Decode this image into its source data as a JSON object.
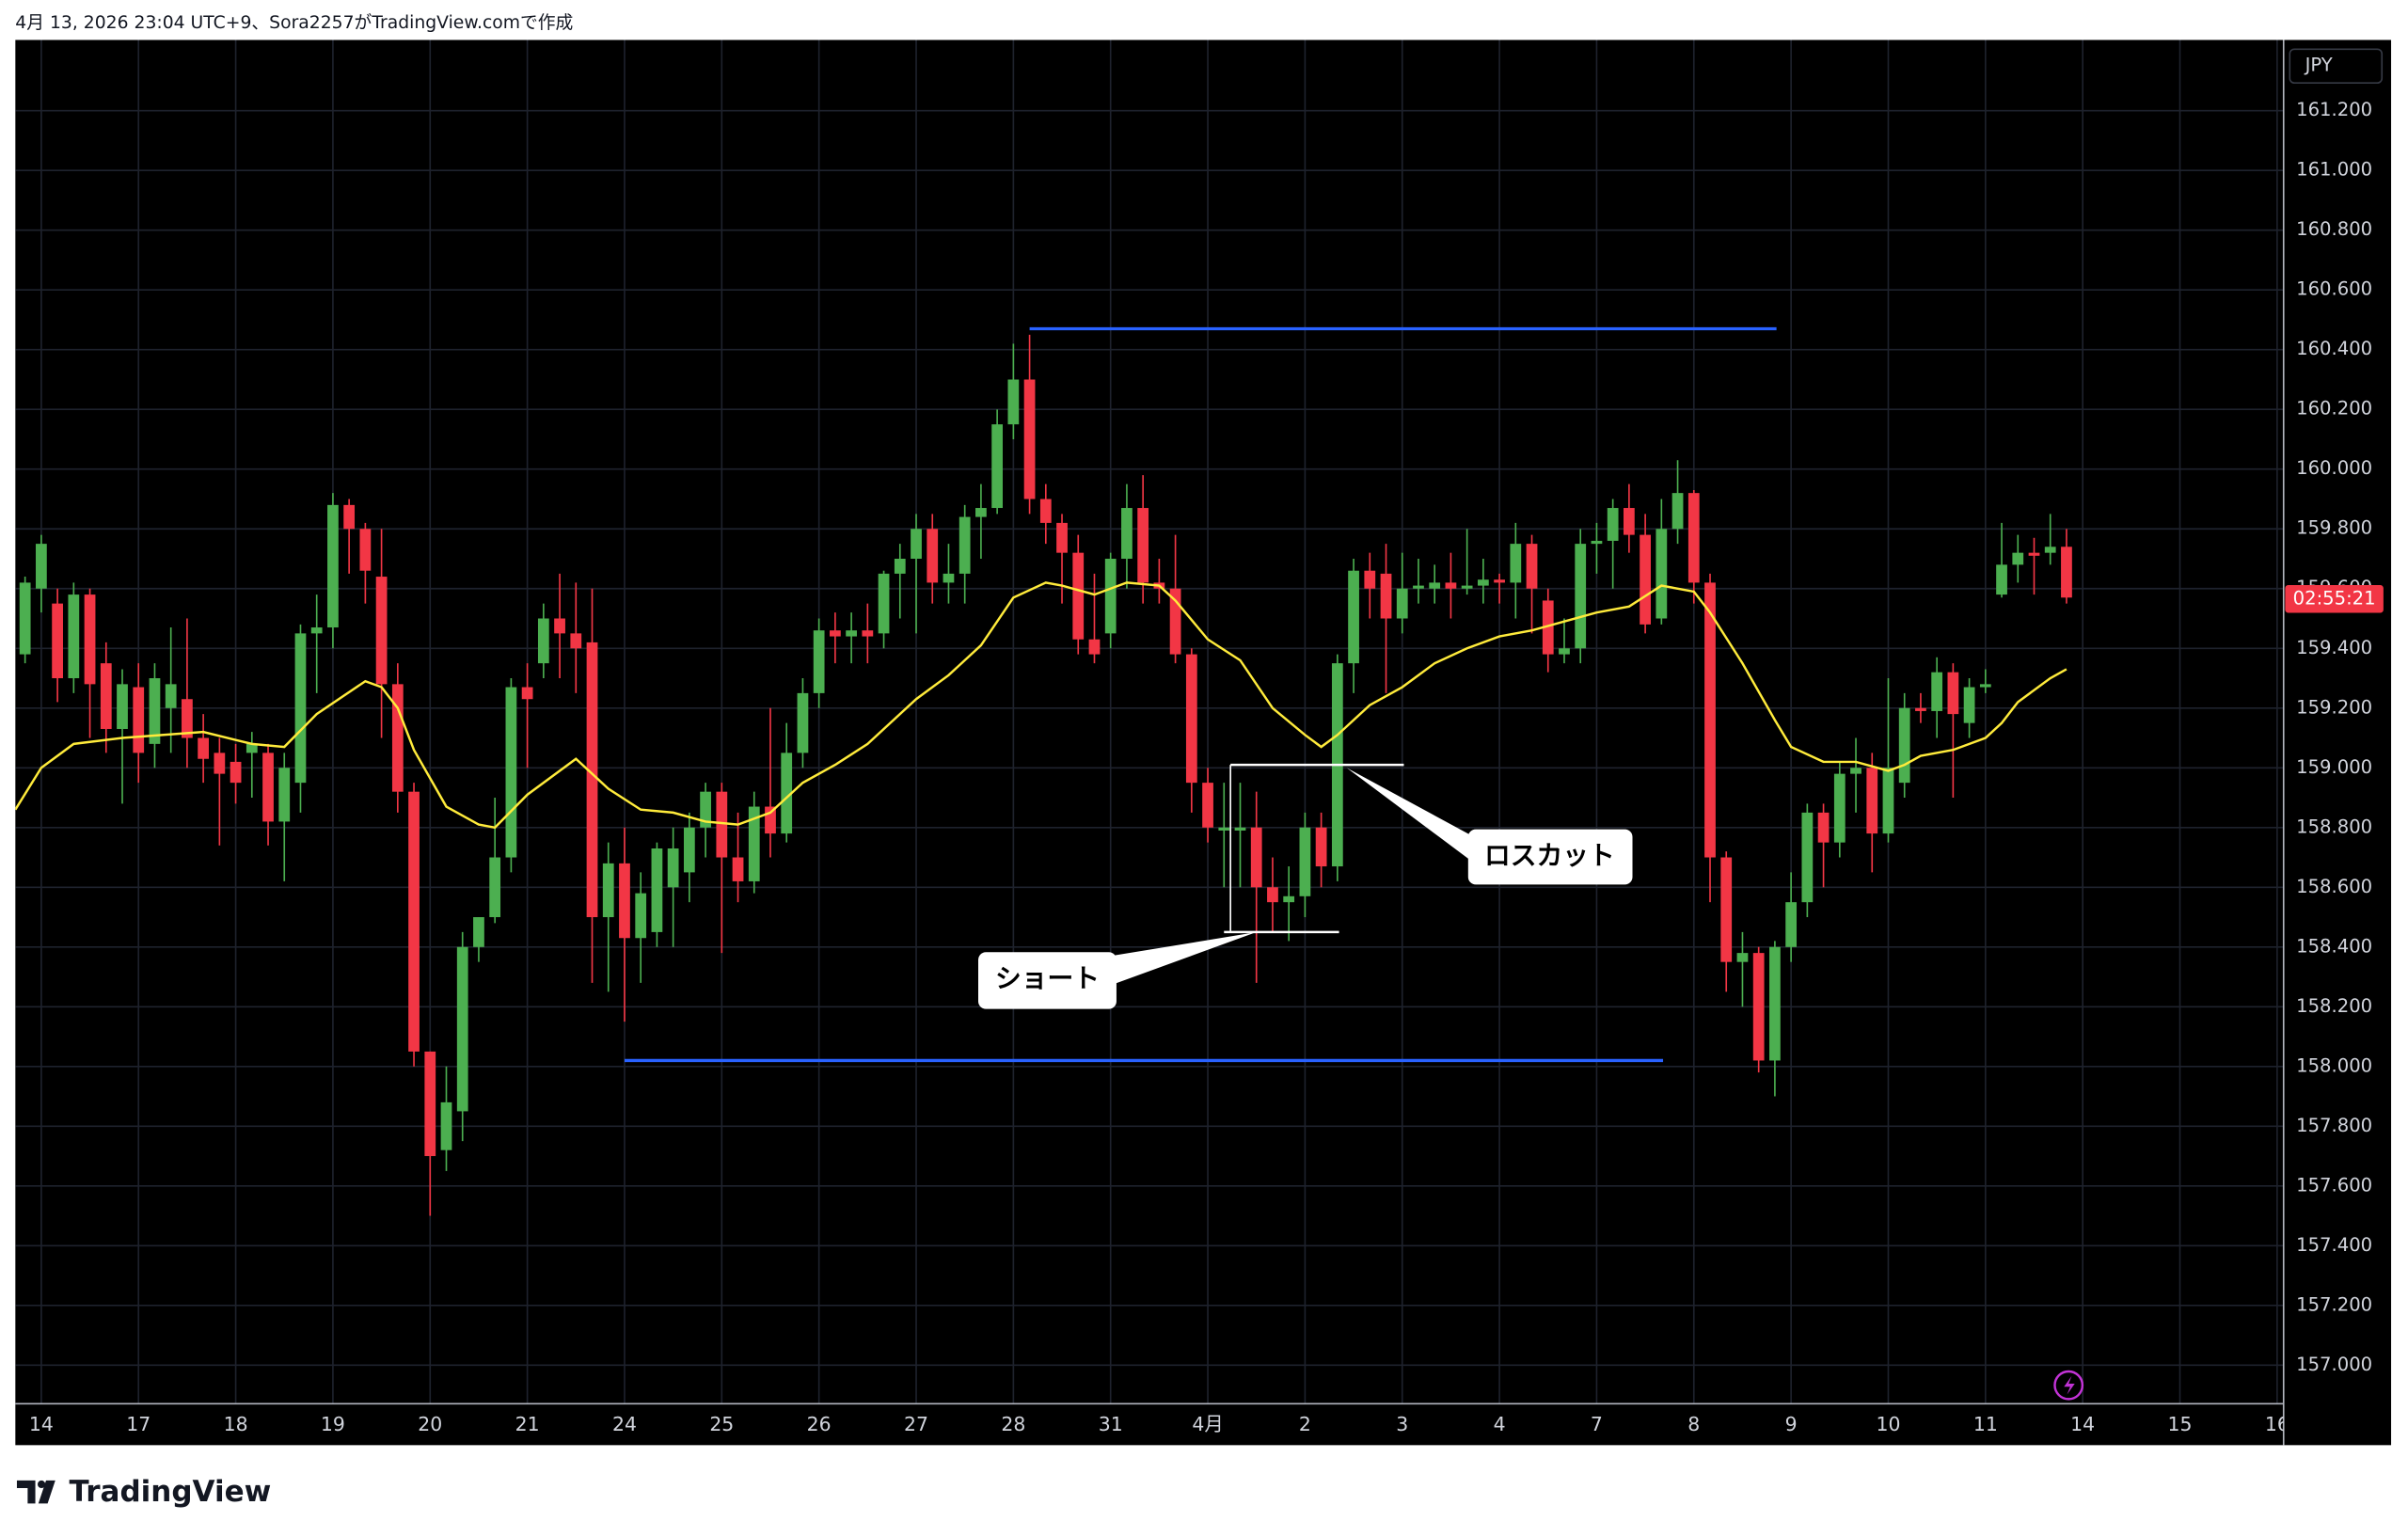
{
  "header": "4月 13, 2026 23:04 UTC+9、Sora2257がTradingView.comで作成",
  "footer_brand": "TradingView",
  "chart_data": {
    "type": "candlestick",
    "currency": "JPY",
    "countdown": "02:55:21",
    "up_color": "#4caf50",
    "down_color": "#f23645",
    "background": "#000000",
    "grid": true,
    "xlim": [
      -0.6,
      139.4
    ],
    "ylim": [
      156.871,
      161.437
    ],
    "xticks": [
      {
        "value": 1,
        "label": "14"
      },
      {
        "value": 7,
        "label": "17"
      },
      {
        "value": 13,
        "label": "18"
      },
      {
        "value": 19,
        "label": "19"
      },
      {
        "value": 25,
        "label": "20"
      },
      {
        "value": 31,
        "label": "21"
      },
      {
        "value": 37,
        "label": "24"
      },
      {
        "value": 43,
        "label": "25"
      },
      {
        "value": 49,
        "label": "26"
      },
      {
        "value": 55,
        "label": "27"
      },
      {
        "value": 61,
        "label": "28"
      },
      {
        "value": 67,
        "label": "31"
      },
      {
        "value": 73,
        "label": "4月"
      },
      {
        "value": 79,
        "label": "2"
      },
      {
        "value": 85,
        "label": "3"
      },
      {
        "value": 91,
        "label": "4"
      },
      {
        "value": 97,
        "label": "7"
      },
      {
        "value": 103,
        "label": "8"
      },
      {
        "value": 109,
        "label": "9"
      },
      {
        "value": 115,
        "label": "10"
      },
      {
        "value": 121,
        "label": "11"
      },
      {
        "value": 127,
        "label": "14"
      },
      {
        "value": 133,
        "label": "15"
      },
      {
        "value": 139,
        "label": "16"
      }
    ],
    "yticks": [
      {
        "value": 161.2,
        "label": "161.200"
      },
      {
        "value": 161.0,
        "label": "161.000"
      },
      {
        "value": 160.8,
        "label": "160.800"
      },
      {
        "value": 160.6,
        "label": "160.600"
      },
      {
        "value": 160.4,
        "label": "160.400"
      },
      {
        "value": 160.2,
        "label": "160.200"
      },
      {
        "value": 160.0,
        "label": "160.000"
      },
      {
        "value": 159.8,
        "label": "159.800"
      },
      {
        "value": 159.6,
        "label": "159.600"
      },
      {
        "value": 159.4,
        "label": "159.400"
      },
      {
        "value": 159.2,
        "label": "159.200"
      },
      {
        "value": 159.0,
        "label": "159.000"
      },
      {
        "value": 158.8,
        "label": "158.800"
      },
      {
        "value": 158.6,
        "label": "158.600"
      },
      {
        "value": 158.4,
        "label": "158.400"
      },
      {
        "value": 158.2,
        "label": "158.200"
      },
      {
        "value": 158.0,
        "label": "158.000"
      },
      {
        "value": 157.8,
        "label": "157.800"
      },
      {
        "value": 157.6,
        "label": "157.600"
      },
      {
        "value": 157.4,
        "label": "157.400"
      },
      {
        "value": 157.2,
        "label": "157.200"
      },
      {
        "value": 157.0,
        "label": "157.000"
      }
    ],
    "open": [
      159.38,
      159.6,
      159.55,
      159.3,
      159.58,
      159.35,
      159.13,
      159.27,
      159.08,
      159.2,
      159.23,
      159.1,
      159.05,
      159.02,
      159.05,
      159.05,
      158.82,
      158.95,
      159.45,
      159.47,
      159.88,
      159.8,
      159.64,
      159.28,
      158.92,
      158.05,
      157.72,
      157.85,
      158.4,
      158.5,
      158.7,
      159.27,
      159.35,
      159.5,
      159.45,
      159.42,
      158.5,
      158.68,
      158.43,
      158.45,
      158.6,
      158.65,
      158.8,
      158.92,
      158.7,
      158.62,
      158.87,
      158.78,
      159.05,
      159.25,
      159.46,
      159.44,
      159.46,
      159.45,
      159.65,
      159.7,
      159.8,
      159.62,
      159.65,
      159.84,
      159.87,
      160.15,
      160.3,
      159.9,
      159.82,
      159.72,
      159.43,
      159.45,
      159.7,
      159.87,
      159.62,
      159.6,
      159.38,
      158.95,
      158.79,
      158.79,
      158.8,
      158.6,
      158.55,
      158.57,
      158.8,
      158.67,
      159.35,
      159.66,
      159.65,
      159.5,
      159.6,
      159.6,
      159.62,
      159.6,
      159.61,
      159.63,
      159.62,
      159.75,
      159.56,
      159.38,
      159.4,
      159.75,
      159.76,
      159.87,
      159.78,
      159.5,
      159.8,
      159.92,
      159.62,
      158.7,
      158.35,
      158.38,
      158.02,
      158.4,
      158.55,
      158.85,
      158.75,
      158.98,
      159.0,
      158.78,
      158.95,
      159.2,
      159.19,
      159.32,
      159.15,
      159.27,
      159.58,
      159.68,
      159.72,
      159.72,
      159.74
    ],
    "high": [
      159.64,
      159.78,
      159.6,
      159.62,
      159.6,
      159.42,
      159.33,
      159.35,
      159.35,
      159.47,
      159.5,
      159.18,
      159.1,
      159.08,
      159.12,
      159.08,
      159.05,
      159.48,
      159.58,
      159.92,
      159.9,
      159.82,
      159.8,
      159.35,
      158.95,
      158.05,
      158.0,
      158.45,
      158.5,
      158.9,
      159.3,
      159.35,
      159.55,
      159.65,
      159.62,
      159.6,
      158.75,
      158.8,
      158.65,
      158.75,
      158.8,
      158.85,
      158.95,
      158.95,
      158.85,
      158.92,
      159.2,
      159.15,
      159.3,
      159.5,
      159.52,
      159.52,
      159.55,
      159.66,
      159.75,
      159.85,
      159.85,
      159.75,
      159.88,
      159.95,
      160.2,
      160.42,
      160.45,
      159.95,
      159.85,
      159.78,
      159.65,
      159.72,
      159.95,
      159.98,
      159.7,
      159.78,
      159.4,
      159.0,
      158.95,
      158.95,
      158.92,
      158.7,
      158.67,
      158.85,
      158.85,
      159.38,
      159.7,
      159.72,
      159.75,
      159.72,
      159.7,
      159.68,
      159.72,
      159.8,
      159.7,
      159.65,
      159.82,
      159.78,
      159.6,
      159.5,
      159.8,
      159.82,
      159.9,
      159.95,
      159.85,
      159.9,
      160.03,
      159.93,
      159.65,
      158.72,
      158.45,
      158.4,
      158.42,
      158.65,
      158.88,
      158.88,
      159.02,
      159.1,
      159.05,
      159.3,
      159.25,
      159.25,
      159.37,
      159.35,
      159.3,
      159.33,
      159.82,
      159.78,
      159.77,
      159.85,
      159.8
    ],
    "low": [
      159.35,
      159.52,
      159.22,
      159.25,
      159.1,
      159.05,
      158.88,
      158.95,
      159.0,
      159.05,
      159.0,
      158.95,
      158.74,
      158.88,
      158.9,
      158.74,
      158.62,
      158.85,
      159.25,
      159.4,
      159.65,
      159.55,
      159.1,
      158.85,
      158.0,
      157.5,
      157.65,
      157.75,
      158.35,
      158.48,
      158.65,
      159.0,
      159.3,
      159.3,
      159.25,
      158.28,
      158.25,
      158.15,
      158.28,
      158.4,
      158.4,
      158.55,
      158.7,
      158.38,
      158.55,
      158.58,
      158.7,
      158.75,
      159.0,
      159.2,
      159.35,
      159.35,
      159.35,
      159.4,
      159.5,
      159.45,
      159.55,
      159.55,
      159.55,
      159.7,
      159.85,
      160.1,
      159.85,
      159.75,
      159.55,
      159.38,
      159.35,
      159.4,
      159.6,
      159.55,
      159.55,
      159.35,
      158.85,
      158.75,
      158.6,
      158.6,
      158.28,
      158.45,
      158.42,
      158.5,
      158.6,
      158.62,
      159.25,
      159.5,
      159.25,
      159.45,
      159.55,
      159.55,
      159.5,
      159.58,
      159.55,
      159.55,
      159.5,
      159.45,
      159.32,
      159.35,
      159.35,
      159.65,
      159.6,
      159.72,
      159.45,
      159.48,
      159.75,
      159.55,
      158.55,
      158.25,
      158.2,
      157.98,
      157.9,
      158.35,
      158.5,
      158.6,
      158.7,
      158.85,
      158.65,
      158.75,
      158.9,
      159.15,
      159.1,
      158.9,
      159.1,
      159.25,
      159.57,
      159.62,
      159.58,
      159.68,
      159.55
    ],
    "close": [
      159.62,
      159.75,
      159.3,
      159.58,
      159.28,
      159.13,
      159.28,
      159.05,
      159.3,
      159.28,
      159.1,
      159.03,
      158.98,
      158.95,
      159.08,
      158.82,
      159.0,
      159.45,
      159.47,
      159.88,
      159.8,
      159.66,
      159.28,
      158.92,
      158.05,
      157.7,
      157.88,
      158.4,
      158.5,
      158.7,
      159.27,
      159.23,
      159.5,
      159.45,
      159.4,
      158.5,
      158.68,
      158.43,
      158.58,
      158.73,
      158.73,
      158.8,
      158.92,
      158.7,
      158.62,
      158.87,
      158.78,
      159.05,
      159.25,
      159.46,
      159.44,
      159.46,
      159.44,
      159.65,
      159.7,
      159.8,
      159.62,
      159.65,
      159.84,
      159.87,
      160.15,
      160.3,
      159.9,
      159.82,
      159.72,
      159.43,
      159.38,
      159.7,
      159.87,
      159.62,
      159.6,
      159.38,
      158.95,
      158.8,
      158.8,
      158.8,
      158.6,
      158.55,
      158.57,
      158.8,
      158.67,
      159.35,
      159.66,
      159.6,
      159.5,
      159.6,
      159.61,
      159.62,
      159.6,
      159.61,
      159.63,
      159.62,
      159.75,
      159.6,
      159.38,
      159.4,
      159.75,
      159.76,
      159.87,
      159.78,
      159.48,
      159.8,
      159.92,
      159.62,
      158.7,
      158.35,
      158.38,
      158.02,
      158.4,
      158.55,
      158.85,
      158.75,
      158.98,
      159.0,
      158.78,
      159.0,
      159.2,
      159.19,
      159.32,
      159.18,
      159.27,
      159.28,
      159.68,
      159.72,
      159.71,
      159.74,
      159.57
    ],
    "ma": {
      "color": "#ffeb3b",
      "x": [
        -0.6,
        1,
        3,
        6,
        11,
        14,
        16,
        18,
        21,
        22,
        23,
        24,
        26,
        28,
        29,
        31,
        34,
        36,
        38,
        40,
        42,
        44,
        46,
        48,
        50,
        52,
        55,
        57,
        59,
        61,
        63,
        64,
        66,
        68,
        70,
        71,
        73,
        75,
        77,
        79,
        80,
        81,
        83,
        85,
        87,
        89,
        91,
        93,
        95,
        97,
        99,
        101,
        103,
        104,
        106,
        108,
        109,
        111,
        113,
        115,
        116,
        117,
        119,
        121,
        122,
        123,
        125,
        126
      ],
      "values": [
        158.86,
        159,
        159.08,
        159.1,
        159.12,
        159.08,
        159.07,
        159.18,
        159.29,
        159.27,
        159.2,
        159.06,
        158.87,
        158.81,
        158.8,
        158.91,
        159.03,
        158.93,
        158.86,
        158.85,
        158.82,
        158.81,
        158.85,
        158.95,
        159.01,
        159.08,
        159.23,
        159.31,
        159.41,
        159.57,
        159.62,
        159.61,
        159.58,
        159.62,
        159.61,
        159.56,
        159.43,
        159.36,
        159.2,
        159.11,
        159.07,
        159.11,
        159.21,
        159.27,
        159.35,
        159.4,
        159.44,
        159.46,
        159.49,
        159.52,
        159.54,
        159.61,
        159.59,
        159.52,
        159.35,
        159.16,
        159.07,
        159.02,
        159.02,
        158.99,
        159.01,
        159.04,
        159.06,
        159.1,
        159.15,
        159.22,
        159.3,
        159.33
      ]
    },
    "hlines": [
      {
        "price": 160.47,
        "from": 62,
        "to": 108.1,
        "color": "#2962ff"
      },
      {
        "price": 158.02,
        "from": 37,
        "to": 101.1,
        "color": "#2962ff"
      }
    ],
    "stop_line": {
      "price": 159.01,
      "from": 74.4,
      "to": 85.1
    },
    "entry_line": {
      "price": 158.45,
      "from": 74,
      "to": 81.1
    },
    "short_label": "ショート",
    "stop_label": "ロスカット"
  }
}
